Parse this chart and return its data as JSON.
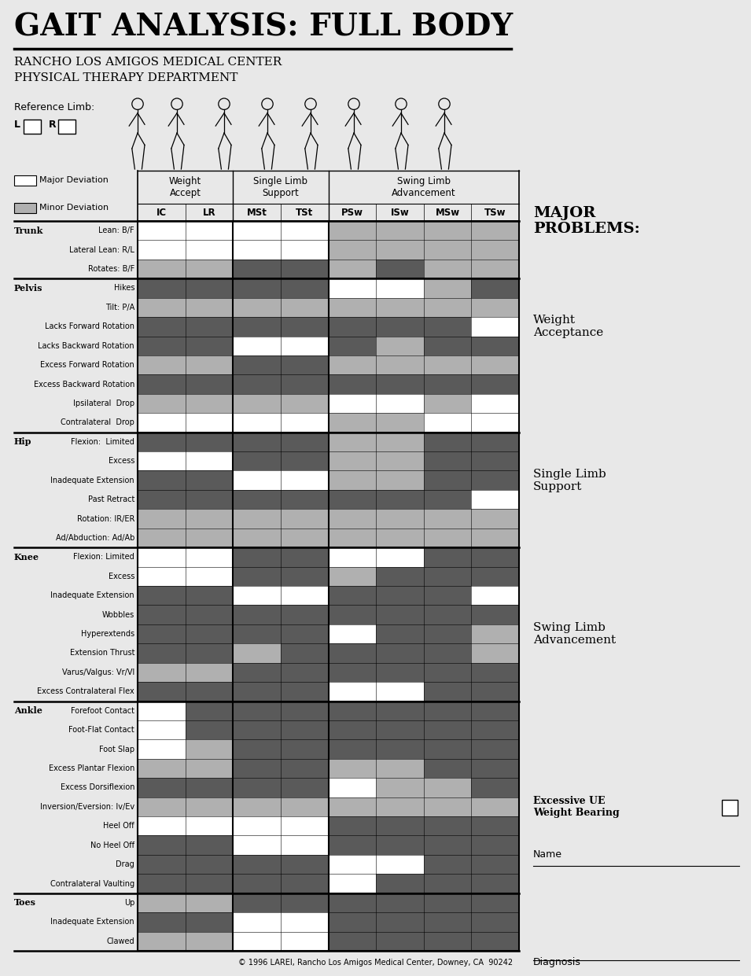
{
  "title": "GAIT ANALYSIS: FULL BODY",
  "subtitle1": "RANCHO LOS AMIGOS MEDICAL CENTER",
  "subtitle2": "PHYSICAL THERAPY DEPARTMENT",
  "copyright": "© 1996 LAREI, Rancho Los Amigos Medical Center, Downey, CA  90242",
  "col_headers": [
    "IC",
    "LR",
    "MSt",
    "TSt",
    "PSw",
    "ISw",
    "MSw",
    "TSw"
  ],
  "bg_color": "#E8E8E8",
  "rows": [
    {
      "label": "Lean: B/F",
      "section": "Trunk",
      "colors": [
        "w",
        "w",
        "w",
        "w",
        "lg",
        "lg",
        "lg",
        "lg"
      ]
    },
    {
      "label": "Lateral Lean: R/L",
      "section": "Trunk",
      "colors": [
        "w",
        "w",
        "w",
        "w",
        "lg",
        "lg",
        "lg",
        "lg"
      ]
    },
    {
      "label": "Rotates: B/F",
      "section": "Trunk",
      "colors": [
        "lg",
        "lg",
        "dg",
        "dg",
        "lg",
        "dg",
        "lg",
        "lg"
      ]
    },
    {
      "label": "Hikes",
      "section": "Pelvis",
      "colors": [
        "dg",
        "dg",
        "dg",
        "dg",
        "w",
        "w",
        "lg",
        "dg"
      ]
    },
    {
      "label": "Tilt: P/A",
      "section": "Pelvis",
      "colors": [
        "lg",
        "lg",
        "lg",
        "lg",
        "lg",
        "lg",
        "lg",
        "lg"
      ]
    },
    {
      "label": "Lacks Forward Rotation",
      "section": "Pelvis",
      "colors": [
        "dg",
        "dg",
        "dg",
        "dg",
        "dg",
        "dg",
        "dg",
        "w"
      ]
    },
    {
      "label": "Lacks Backward Rotation",
      "section": "Pelvis",
      "colors": [
        "dg",
        "dg",
        "w",
        "w",
        "dg",
        "lg",
        "dg",
        "dg"
      ]
    },
    {
      "label": "Excess Forward Rotation",
      "section": "Pelvis",
      "colors": [
        "lg",
        "lg",
        "dg",
        "dg",
        "lg",
        "lg",
        "lg",
        "lg"
      ]
    },
    {
      "label": "Excess Backward Rotation",
      "section": "Pelvis",
      "colors": [
        "dg",
        "dg",
        "dg",
        "dg",
        "dg",
        "dg",
        "dg",
        "dg"
      ]
    },
    {
      "label": "Ipsilateral  Drop",
      "section": "Pelvis",
      "colors": [
        "lg",
        "lg",
        "lg",
        "lg",
        "w",
        "w",
        "lg",
        "w"
      ]
    },
    {
      "label": "Contralateral  Drop",
      "section": "Pelvis",
      "colors": [
        "w",
        "w",
        "w",
        "w",
        "lg",
        "lg",
        "w",
        "w"
      ]
    },
    {
      "label": "Flexion:  Limited",
      "section": "Hip",
      "colors": [
        "dg",
        "dg",
        "dg",
        "dg",
        "lg",
        "lg",
        "dg",
        "dg"
      ]
    },
    {
      "label": "Excess",
      "section": "Hip",
      "colors": [
        "w",
        "w",
        "dg",
        "dg",
        "lg",
        "lg",
        "dg",
        "dg"
      ]
    },
    {
      "label": "Inadequate Extension",
      "section": "Hip",
      "colors": [
        "dg",
        "dg",
        "w",
        "w",
        "lg",
        "lg",
        "dg",
        "dg"
      ]
    },
    {
      "label": "Past Retract",
      "section": "Hip",
      "colors": [
        "dg",
        "dg",
        "dg",
        "dg",
        "dg",
        "dg",
        "dg",
        "w"
      ]
    },
    {
      "label": "Rotation: IR/ER",
      "section": "Hip",
      "colors": [
        "lg",
        "lg",
        "lg",
        "lg",
        "lg",
        "lg",
        "lg",
        "lg"
      ]
    },
    {
      "label": "Ad/Abduction: Ad/Ab",
      "section": "Hip",
      "colors": [
        "lg",
        "lg",
        "lg",
        "lg",
        "lg",
        "lg",
        "lg",
        "lg"
      ]
    },
    {
      "label": "Flexion: Limited",
      "section": "Knee",
      "colors": [
        "w",
        "w",
        "dg",
        "dg",
        "w",
        "w",
        "dg",
        "dg"
      ]
    },
    {
      "label": "Excess",
      "section": "Knee",
      "colors": [
        "w",
        "w",
        "dg",
        "dg",
        "lg",
        "dg",
        "dg",
        "dg"
      ]
    },
    {
      "label": "Inadequate Extension",
      "section": "Knee",
      "colors": [
        "dg",
        "dg",
        "w",
        "w",
        "dg",
        "dg",
        "dg",
        "w"
      ]
    },
    {
      "label": "Wobbles",
      "section": "Knee",
      "colors": [
        "dg",
        "dg",
        "dg",
        "dg",
        "dg",
        "dg",
        "dg",
        "dg"
      ]
    },
    {
      "label": "Hyperextends",
      "section": "Knee",
      "colors": [
        "dg",
        "dg",
        "dg",
        "dg",
        "w",
        "dg",
        "dg",
        "lg"
      ]
    },
    {
      "label": "Extension Thrust",
      "section": "Knee",
      "colors": [
        "dg",
        "dg",
        "lg",
        "dg",
        "dg",
        "dg",
        "dg",
        "lg"
      ]
    },
    {
      "label": "Varus/Valgus: Vr/Vl",
      "section": "Knee",
      "colors": [
        "lg",
        "lg",
        "dg",
        "dg",
        "dg",
        "dg",
        "dg",
        "dg"
      ]
    },
    {
      "label": "Excess Contralateral Flex",
      "section": "Knee",
      "colors": [
        "dg",
        "dg",
        "dg",
        "dg",
        "w",
        "w",
        "dg",
        "dg"
      ]
    },
    {
      "label": "Forefoot Contact",
      "section": "Ankle",
      "colors": [
        "w",
        "dg",
        "dg",
        "dg",
        "dg",
        "dg",
        "dg",
        "dg"
      ]
    },
    {
      "label": "Foot-Flat Contact",
      "section": "Ankle",
      "colors": [
        "w",
        "dg",
        "dg",
        "dg",
        "dg",
        "dg",
        "dg",
        "dg"
      ]
    },
    {
      "label": "Foot Slap",
      "section": "Ankle",
      "colors": [
        "w",
        "lg",
        "dg",
        "dg",
        "dg",
        "dg",
        "dg",
        "dg"
      ]
    },
    {
      "label": "Excess Plantar Flexion",
      "section": "Ankle",
      "colors": [
        "lg",
        "lg",
        "dg",
        "dg",
        "lg",
        "lg",
        "dg",
        "dg"
      ]
    },
    {
      "label": "Excess Dorsiflexion",
      "section": "Ankle",
      "colors": [
        "dg",
        "dg",
        "dg",
        "dg",
        "w",
        "lg",
        "lg",
        "dg"
      ]
    },
    {
      "label": "Inversion/Eversion: Iv/Ev",
      "section": "Ankle",
      "colors": [
        "lg",
        "lg",
        "lg",
        "lg",
        "lg",
        "lg",
        "lg",
        "lg"
      ]
    },
    {
      "label": "Heel Off",
      "section": "Ankle",
      "colors": [
        "w",
        "w",
        "w",
        "w",
        "dg",
        "dg",
        "dg",
        "dg"
      ]
    },
    {
      "label": "No Heel Off",
      "section": "Ankle",
      "colors": [
        "dg",
        "dg",
        "w",
        "w",
        "dg",
        "dg",
        "dg",
        "dg"
      ]
    },
    {
      "label": "Drag",
      "section": "Ankle",
      "colors": [
        "dg",
        "dg",
        "dg",
        "dg",
        "w",
        "w",
        "dg",
        "dg"
      ]
    },
    {
      "label": "Contralateral Vaulting",
      "section": "Ankle",
      "colors": [
        "dg",
        "dg",
        "dg",
        "dg",
        "w",
        "dg",
        "dg",
        "dg"
      ]
    },
    {
      "label": "Up",
      "section": "Toes",
      "colors": [
        "lg",
        "lg",
        "dg",
        "dg",
        "dg",
        "dg",
        "dg",
        "dg"
      ]
    },
    {
      "label": "Inadequate Extension",
      "section": "Toes",
      "colors": [
        "dg",
        "dg",
        "w",
        "w",
        "dg",
        "dg",
        "dg",
        "dg"
      ]
    },
    {
      "label": "Clawed",
      "section": "Toes",
      "colors": [
        "lg",
        "lg",
        "w",
        "w",
        "dg",
        "dg",
        "dg",
        "dg"
      ]
    }
  ]
}
